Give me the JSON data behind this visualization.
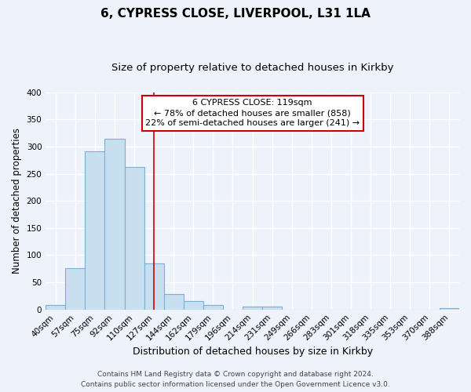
{
  "title": "6, CYPRESS CLOSE, LIVERPOOL, L31 1LA",
  "subtitle": "Size of property relative to detached houses in Kirkby",
  "xlabel": "Distribution of detached houses by size in Kirkby",
  "ylabel": "Number of detached properties",
  "bar_labels": [
    "40sqm",
    "57sqm",
    "75sqm",
    "92sqm",
    "110sqm",
    "127sqm",
    "144sqm",
    "162sqm",
    "179sqm",
    "196sqm",
    "214sqm",
    "231sqm",
    "249sqm",
    "266sqm",
    "283sqm",
    "301sqm",
    "318sqm",
    "335sqm",
    "353sqm",
    "370sqm",
    "388sqm"
  ],
  "bar_heights": [
    8,
    76,
    291,
    314,
    263,
    85,
    28,
    16,
    8,
    0,
    5,
    5,
    0,
    0,
    0,
    0,
    0,
    0,
    0,
    0,
    3
  ],
  "bar_color": "#c8dff0",
  "bar_edge_color": "#7bafd4",
  "ylim": [
    0,
    400
  ],
  "yticks": [
    0,
    50,
    100,
    150,
    200,
    250,
    300,
    350,
    400
  ],
  "vline_x": 5.0,
  "vline_color": "#cc0000",
  "annotation_title": "6 CYPRESS CLOSE: 119sqm",
  "annotation_line1": "← 78% of detached houses are smaller (858)",
  "annotation_line2": "22% of semi-detached houses are larger (241) →",
  "footnote1": "Contains HM Land Registry data © Crown copyright and database right 2024.",
  "footnote2": "Contains public sector information licensed under the Open Government Licence v3.0.",
  "background_color": "#eef2fb",
  "grid_color": "#ffffff",
  "title_fontsize": 11,
  "subtitle_fontsize": 9.5,
  "xlabel_fontsize": 9,
  "ylabel_fontsize": 8.5,
  "tick_fontsize": 7.5,
  "annotation_fontsize": 8,
  "footnote_fontsize": 6.5
}
